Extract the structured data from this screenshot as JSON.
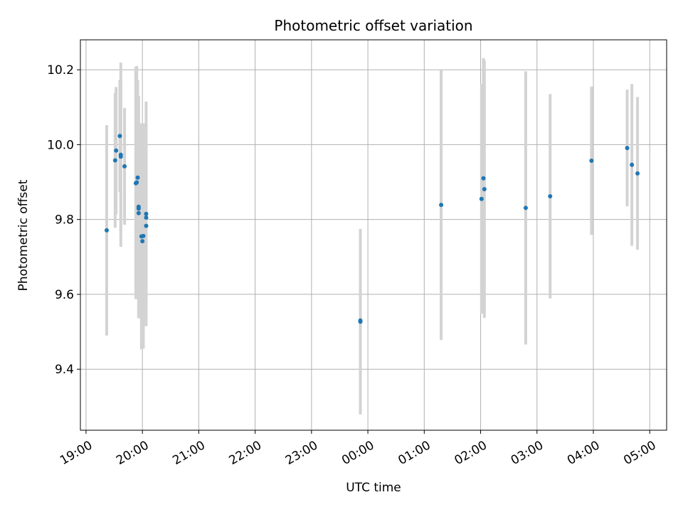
{
  "chart_data": {
    "type": "scatter",
    "title": "Photometric offset variation",
    "xlabel": "UTC time",
    "ylabel": "Photometric offset",
    "x_tick_labels": [
      "19:00",
      "20:00",
      "21:00",
      "22:00",
      "23:00",
      "00:00",
      "01:00",
      "02:00",
      "03:00",
      "04:00",
      "05:00"
    ],
    "y_tick_labels": [
      "9.4",
      "9.6",
      "9.8",
      "10.0",
      "10.2"
    ],
    "y_ticks": [
      9.4,
      9.6,
      9.8,
      10.0,
      10.2
    ],
    "xlim_hours": [
      18.9,
      29.3
    ],
    "ylim": [
      9.237,
      10.28
    ],
    "grid": true,
    "colors": {
      "points": "#1f77b4",
      "errorbars": "#d3d3d3",
      "grid": "#b0b0b0"
    },
    "series": [
      {
        "points": [
          {
            "t": "19:22",
            "y": 9.771,
            "err": 0.281
          },
          {
            "t": "19:31",
            "y": 9.958,
            "err": 0.18
          },
          {
            "t": "19:32",
            "y": 9.984,
            "err": 0.17
          },
          {
            "t": "19:36",
            "y": 10.023,
            "err": 0.15
          },
          {
            "t": "19:37",
            "y": 9.973,
            "err": 0.246
          },
          {
            "t": "19:37",
            "y": 9.968,
            "err": 0.2
          },
          {
            "t": "19:41",
            "y": 9.942,
            "err": 0.156
          },
          {
            "t": "19:53",
            "y": 9.897,
            "err": 0.31
          },
          {
            "t": "19:54",
            "y": 9.899,
            "err": 0.311
          },
          {
            "t": "19:55",
            "y": 9.912,
            "err": 0.26
          },
          {
            "t": "19:56",
            "y": 9.834,
            "err": 0.296
          },
          {
            "t": "19:56",
            "y": 9.829,
            "err": 0.23
          },
          {
            "t": "19:56",
            "y": 9.817,
            "err": 0.281
          },
          {
            "t": "19:59",
            "y": 9.755,
            "err": 0.302
          },
          {
            "t": "20:00",
            "y": 9.742,
            "err": 0.2
          },
          {
            "t": "20:01",
            "y": 9.756,
            "err": 0.301
          },
          {
            "t": "20:04",
            "y": 9.815,
            "err": 0.3
          },
          {
            "t": "20:04",
            "y": 9.805,
            "err": 0.2
          },
          {
            "t": "20:04",
            "y": 9.783,
            "err": 0.2
          },
          {
            "t": "23:52",
            "y": 9.527,
            "err": 0.248
          },
          {
            "t": "23:52",
            "y": 9.53,
            "err": 0.2
          },
          {
            "t": "01:18",
            "y": 9.839,
            "err": 0.361
          },
          {
            "t": "02:01",
            "y": 9.855,
            "err": 0.307
          },
          {
            "t": "02:03",
            "y": 9.91,
            "err": 0.321
          },
          {
            "t": "02:04",
            "y": 9.881,
            "err": 0.344
          },
          {
            "t": "02:48",
            "y": 9.831,
            "err": 0.365
          },
          {
            "t": "03:14",
            "y": 9.862,
            "err": 0.273
          },
          {
            "t": "03:58",
            "y": 9.957,
            "err": 0.198
          },
          {
            "t": "04:36",
            "y": 9.991,
            "err": 0.156
          },
          {
            "t": "04:41",
            "y": 9.946,
            "err": 0.216
          },
          {
            "t": "04:47",
            "y": 9.923,
            "err": 0.204
          }
        ]
      }
    ]
  }
}
